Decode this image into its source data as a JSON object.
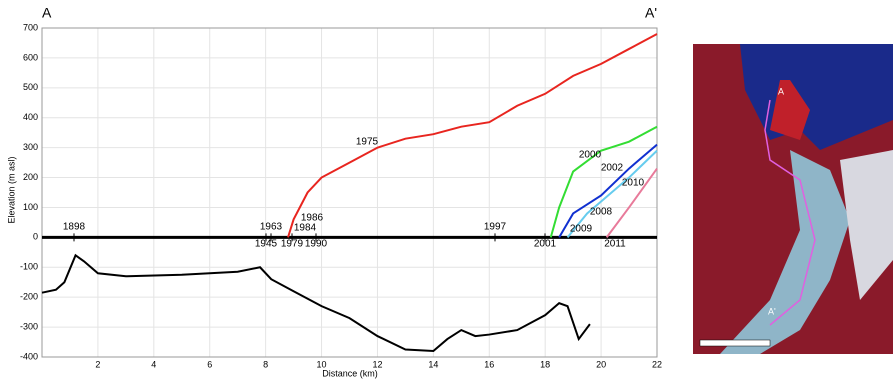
{
  "chart_data": {
    "type": "line",
    "corner_labels": [
      "A",
      "A'"
    ],
    "xlabel": "Distance (km)",
    "ylabel": "Elevation (m asl)",
    "xlim": [
      0,
      22
    ],
    "xticks": [
      2,
      4,
      6,
      8,
      10,
      12,
      14,
      16,
      18,
      20,
      22
    ],
    "ylim": [
      -400,
      700
    ],
    "yticks": [
      -400,
      -300,
      -200,
      -100,
      0,
      100,
      200,
      300,
      400,
      500,
      600,
      700
    ],
    "grid": true,
    "series": [
      {
        "color": "#000000",
        "x": [
          0,
          0.5,
          0.8,
          1.2,
          1.5,
          2,
          3,
          5,
          7,
          7.8,
          8.2,
          9,
          10,
          11,
          12,
          13,
          14,
          14.5,
          15,
          15.5,
          16,
          17,
          18,
          18.5,
          18.8,
          19.2,
          19.6
        ],
        "values": [
          -185,
          -175,
          -150,
          -60,
          -80,
          -120,
          -130,
          -125,
          -115,
          -100,
          -140,
          -180,
          -230,
          -270,
          -330,
          -375,
          -380,
          -340,
          -310,
          -330,
          -325,
          -310,
          -260,
          -220,
          -230,
          -340,
          -290
        ]
      },
      {
        "name": "1975",
        "color": "#e8251f",
        "x": [
          8.8,
          9,
          9.5,
          10,
          11,
          12,
          13,
          14,
          15,
          16,
          17,
          18,
          19,
          20,
          21,
          22
        ],
        "values": [
          0,
          60,
          150,
          200,
          250,
          300,
          330,
          345,
          370,
          385,
          440,
          480,
          540,
          580,
          630,
          680
        ]
      },
      {
        "name": "2000",
        "color": "#33dd33",
        "x": [
          18.2,
          18.5,
          19,
          20,
          21,
          22
        ],
        "values": [
          0,
          100,
          220,
          290,
          320,
          370
        ]
      },
      {
        "name": "2002",
        "color": "#1030d0",
        "x": [
          18.5,
          19,
          20,
          21,
          22
        ],
        "values": [
          0,
          80,
          140,
          230,
          310
        ]
      },
      {
        "name": "2008",
        "color": "#66ccee",
        "x": [
          18.8,
          19.5,
          20,
          21,
          22
        ],
        "values": [
          0,
          80,
          120,
          200,
          290
        ]
      },
      {
        "name": "2010",
        "color": "#e87a9a",
        "x": [
          20.2,
          21,
          22
        ],
        "values": [
          0,
          100,
          230
        ]
      }
    ],
    "annotations": [
      "1898",
      "1963",
      "1945",
      "1979",
      "1984",
      "1986",
      "1990",
      "1997",
      "2001",
      "2009",
      "2011"
    ]
  },
  "map_labels": [
    "A",
    "A'"
  ]
}
